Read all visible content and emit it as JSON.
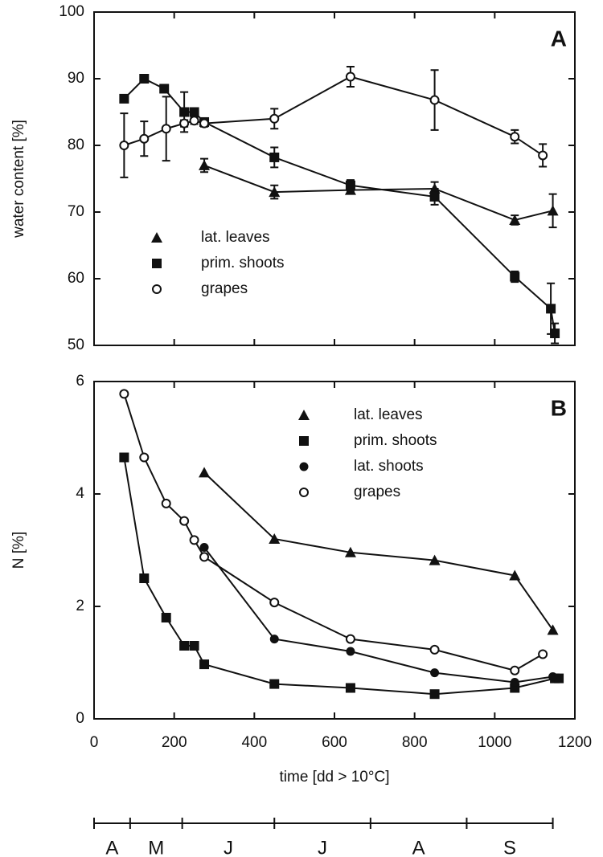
{
  "chart_data": [
    {
      "type": "line",
      "panel_label": "A",
      "ylabel": "water content [%]",
      "xlim": [
        0,
        1200
      ],
      "xticks": [
        0,
        200,
        400,
        600,
        800,
        1000,
        1200
      ],
      "show_xtick_labels": false,
      "ylim": [
        50,
        100
      ],
      "yticks": [
        50,
        60,
        70,
        80,
        90,
        100
      ],
      "legend": "lower left",
      "series": [
        {
          "name": "lat. leaves",
          "marker": "triangle",
          "color": "#111111",
          "x": [
            275,
            450,
            640,
            850,
            1050,
            1145
          ],
          "values": [
            77,
            73,
            73.3,
            73.5,
            68.8,
            70.2
          ],
          "errors": [
            1,
            1,
            0.5,
            1,
            0.7,
            2.5
          ]
        },
        {
          "name": "prim. shoots",
          "marker": "square",
          "color": "#111111",
          "x": [
            75,
            125,
            175,
            225,
            250,
            275,
            450,
            640,
            850,
            1050,
            1140,
            1150
          ],
          "values": [
            87,
            90,
            88.5,
            85,
            85,
            83.5,
            78.2,
            74,
            72.3,
            60.3,
            55.5,
            51.8
          ],
          "errors": [
            0.5,
            0.5,
            0.5,
            3,
            0.5,
            0.5,
            1.5,
            0.8,
            1.2,
            0.8,
            3.8,
            1.5
          ]
        },
        {
          "name": "grapes",
          "marker": "open-circle",
          "color": "#111111",
          "x": [
            75,
            125,
            180,
            225,
            250,
            275,
            450,
            640,
            850,
            1050,
            1120
          ],
          "values": [
            80,
            81,
            82.5,
            83.3,
            83.7,
            83.3,
            84,
            90.3,
            86.8,
            81.3,
            78.5
          ],
          "errors": [
            4.8,
            2.6,
            4.8,
            0.5,
            0.5,
            0.5,
            1.5,
            1.5,
            4.5,
            1,
            1.7
          ]
        }
      ]
    },
    {
      "type": "line",
      "panel_label": "B",
      "ylabel": "N [%]",
      "xlabel": "time [dd > 10°C]",
      "xlim": [
        0,
        1200
      ],
      "xticks": [
        0,
        200,
        400,
        600,
        800,
        1000,
        1200
      ],
      "show_xtick_labels": true,
      "ylim": [
        0,
        6
      ],
      "yticks": [
        0,
        2,
        4,
        6
      ],
      "legend": "upper right",
      "series": [
        {
          "name": "lat. leaves",
          "marker": "triangle",
          "color": "#111111",
          "x": [
            275,
            450,
            640,
            850,
            1050,
            1145
          ],
          "values": [
            4.38,
            3.2,
            2.96,
            2.82,
            2.55,
            1.58
          ]
        },
        {
          "name": "prim. shoots",
          "marker": "square",
          "color": "#111111",
          "x": [
            75,
            125,
            180,
            225,
            250,
            275,
            450,
            640,
            850,
            1050,
            1150,
            1160
          ],
          "values": [
            4.65,
            2.5,
            1.8,
            1.3,
            1.3,
            0.97,
            0.62,
            0.55,
            0.44,
            0.55,
            0.72,
            0.72
          ]
        },
        {
          "name": "lat. shoots",
          "marker": "circle",
          "color": "#111111",
          "x": [
            275,
            450,
            640,
            850,
            1050,
            1145
          ],
          "values": [
            3.05,
            1.42,
            1.2,
            0.82,
            0.65,
            0.75
          ]
        },
        {
          "name": "grapes",
          "marker": "open-circle",
          "color": "#111111",
          "x": [
            75,
            125,
            180,
            225,
            250,
            275,
            450,
            640,
            850,
            1050,
            1120
          ],
          "values": [
            5.78,
            4.65,
            3.83,
            3.52,
            3.18,
            2.88,
            2.07,
            1.42,
            1.23,
            0.86,
            1.15
          ]
        }
      ]
    },
    {
      "type": "timeline",
      "xlim": [
        0,
        1200
      ],
      "categories": [
        "A",
        "M",
        "J",
        "J",
        "A",
        "S"
      ],
      "bins": [
        0,
        90,
        220,
        450,
        690,
        930,
        1145
      ]
    }
  ]
}
